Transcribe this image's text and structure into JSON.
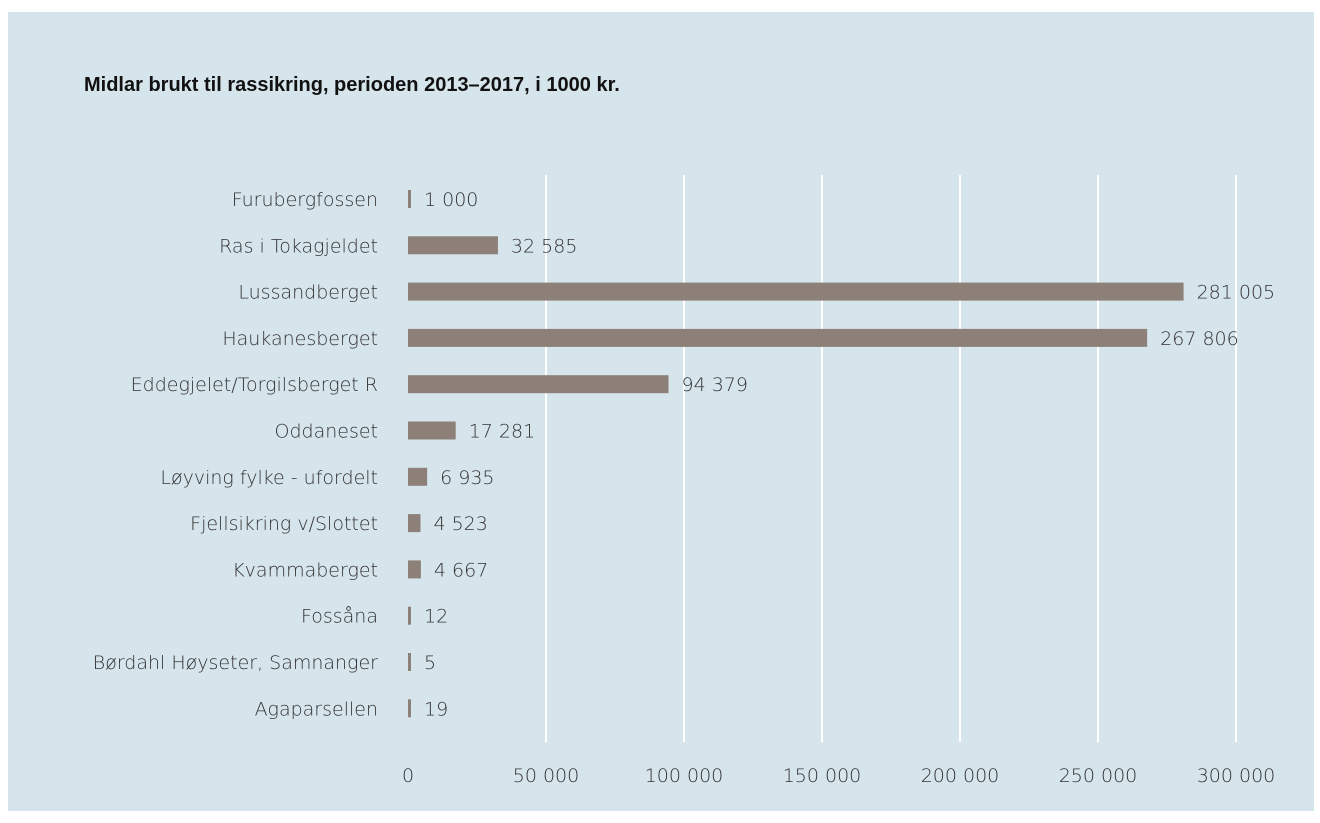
{
  "chart_data": {
    "type": "bar",
    "orientation": "horizontal",
    "title": "Midlar brukt til rassikring, perioden 2013–2017, i 1000 kr.",
    "categories": [
      "Furubergfossen",
      "Ras i Tokagjeldet",
      "Lussandberget",
      "Haukanesberget",
      "Eddegjelet/Torgilsberget R",
      "Oddaneset",
      "Løyving fylke - ufordelt",
      "Fjellsikring v/Slottet",
      "Kvammaberget",
      "Fossåna",
      "Børdahl Høyseter, Samnanger",
      "Agaparsellen"
    ],
    "values": [
      1000,
      32585,
      281005,
      267806,
      94379,
      17281,
      6935,
      4523,
      4667,
      12,
      5,
      19
    ],
    "value_labels": [
      "1 000",
      "32 585",
      "281 005",
      "267 806",
      "94 379",
      "17 281",
      "6 935",
      "4 523",
      "4 667",
      "12",
      "5",
      "19"
    ],
    "xlim": [
      0,
      300000
    ],
    "x_ticks": [
      0,
      50000,
      100000,
      150000,
      200000,
      250000,
      300000
    ],
    "x_tick_labels": [
      "0",
      "50 000",
      "100 000",
      "150 000",
      "200 000",
      "250 000",
      "300 000"
    ],
    "grid": "vertical",
    "legend": "none",
    "bar_color": "#8c8079",
    "background_color": "#d6e4ec",
    "grid_color": "#ffffff"
  }
}
